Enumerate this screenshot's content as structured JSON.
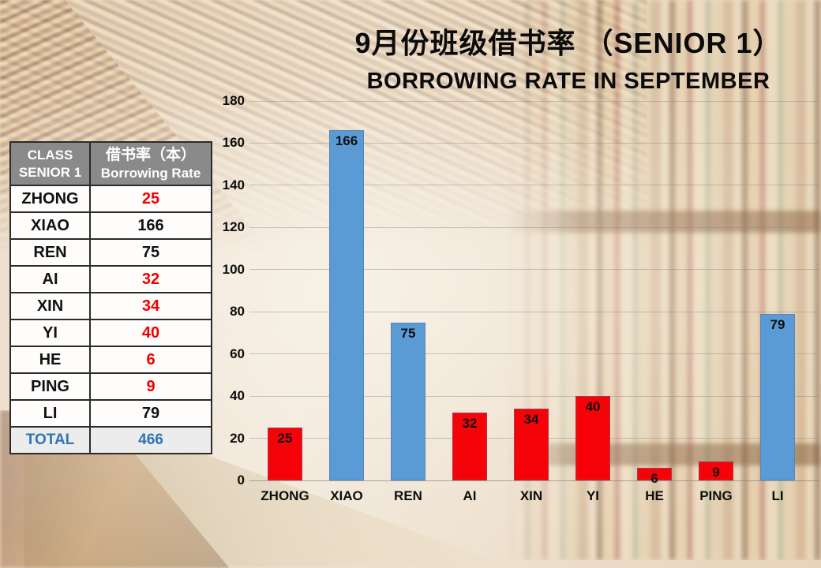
{
  "title": {
    "line1": "9月份班级借书率 （SENIOR 1）",
    "line2": "BORROWING RATE IN SEPTEMBER"
  },
  "table": {
    "header": {
      "col1_line1": "CLASS",
      "col1_line2": "SENIOR 1",
      "col2_line1": "借书率（本）",
      "col2_line2": "Borrowing Rate"
    },
    "rows": [
      {
        "name": "ZHONG",
        "value": "25",
        "red": true
      },
      {
        "name": "XIAO",
        "value": "166",
        "red": false
      },
      {
        "name": "REN",
        "value": "75",
        "red": false
      },
      {
        "name": "AI",
        "value": "32",
        "red": true
      },
      {
        "name": "XIN",
        "value": "34",
        "red": true
      },
      {
        "name": "YI",
        "value": "40",
        "red": true
      },
      {
        "name": "HE",
        "value": "6",
        "red": true
      },
      {
        "name": "PING",
        "value": "9",
        "red": true
      },
      {
        "name": "LI",
        "value": "79",
        "red": false
      }
    ],
    "total": {
      "label": "TOTAL",
      "value": "466"
    }
  },
  "chart_data": {
    "type": "bar",
    "categories": [
      "ZHONG",
      "XIAO",
      "REN",
      "AI",
      "XIN",
      "YI",
      "HE",
      "PING",
      "LI"
    ],
    "values": [
      25,
      166,
      75,
      32,
      34,
      40,
      6,
      9,
      79
    ],
    "bar_colors": [
      "#f50308",
      "#5b9bd5",
      "#5b9bd5",
      "#f50308",
      "#f50308",
      "#f50308",
      "#f50308",
      "#f50308",
      "#5b9bd5"
    ],
    "ylim": [
      0,
      180
    ],
    "yticks": [
      0,
      20,
      40,
      60,
      80,
      100,
      120,
      140,
      160,
      180
    ],
    "grid": true,
    "legend": "none",
    "value_label_position": "inside-end",
    "xlabel": "",
    "ylabel": ""
  },
  "colors": {
    "bar_blue": "#5b9bd5",
    "bar_red": "#f50308",
    "table_red_text": "#ee0000",
    "total_text": "#2e75b6",
    "header_bg": "#8a8a8a"
  }
}
